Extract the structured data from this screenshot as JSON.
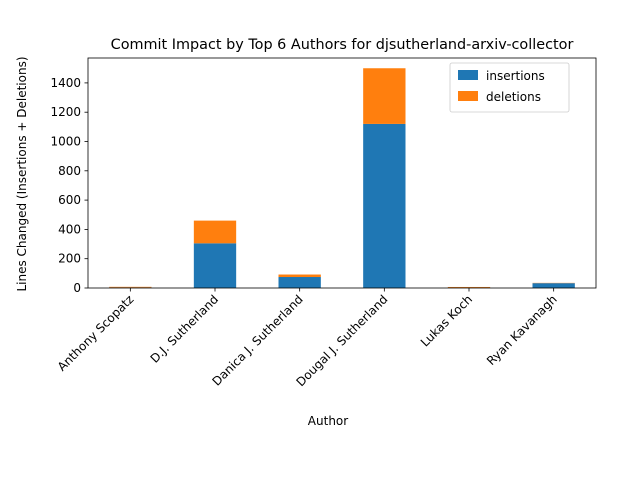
{
  "chart_data": {
    "type": "bar",
    "stacked": true,
    "title": "Commit Impact by Top 6 Authors for djsutherland-arxiv-collector",
    "xlabel": "Author",
    "ylabel": "Lines Changed (Insertions + Deletions)",
    "categories": [
      "Anthony Scopatz",
      "D.J. Sutherland",
      "Danica J. Sutherland",
      "Dougal J. Sutherland",
      "Lukas Koch",
      "Ryan Kavanagh"
    ],
    "series": [
      {
        "name": "insertions",
        "color": "#1f77b4",
        "values": [
          4,
          305,
          75,
          1120,
          3,
          33
        ]
      },
      {
        "name": "deletions",
        "color": "#ff7f0e",
        "values": [
          4,
          155,
          17,
          380,
          4,
          2
        ]
      }
    ],
    "ylim": [
      0,
      1570
    ],
    "yticks": [
      0,
      200,
      400,
      600,
      800,
      1000,
      1200,
      1400
    ],
    "legend_position": "top-right",
    "grid": false
  }
}
